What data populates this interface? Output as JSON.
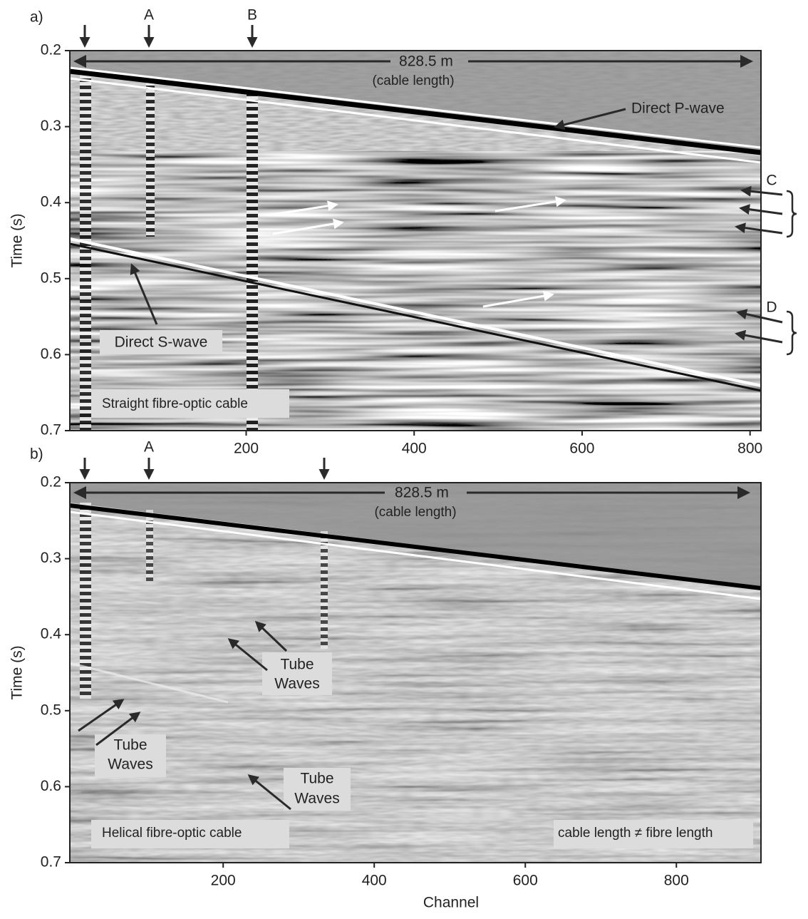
{
  "chart_data": [
    {
      "type": "seismic",
      "label": "a)",
      "xlim": [
        -10,
        813
      ],
      "xticks": [
        200,
        400,
        600,
        800
      ],
      "ylim": [
        0.2,
        0.7
      ],
      "yticks": [
        0.2,
        0.3,
        0.4,
        0.5,
        0.6,
        0.7
      ],
      "yreverse": true,
      "ylabel": "Time (s)",
      "annotations": {
        "top_markers": [
          "A",
          "B"
        ],
        "cable": "828.5 m",
        "cable_note": "(cable length)",
        "p_wave": "Direct P-wave",
        "s_wave": "Direct S-wave",
        "c": "C",
        "d": "D",
        "cable_type": "Straight fibre-optic cable"
      }
    },
    {
      "type": "seismic",
      "label": "b)",
      "xlim": [
        -3,
        912
      ],
      "xticks": [
        200,
        400,
        600,
        800
      ],
      "ylim": [
        0.2,
        0.7
      ],
      "yticks": [
        0.2,
        0.3,
        0.4,
        0.5,
        0.6,
        0.7
      ],
      "yreverse": true,
      "ylabel": "Time (s)",
      "xlabel": "Channel",
      "annotations": {
        "top_markers": [
          "A"
        ],
        "cable": "828.5 m",
        "cable_note": "(cable length)",
        "tube_waves": [
          [
            "Tube",
            "Waves"
          ],
          [
            "Tube",
            "Waves"
          ],
          [
            "Tube",
            "Waves"
          ]
        ],
        "cable_type": "Helical fibre-optic cable",
        "note": "cable length ≠ fibre length"
      }
    }
  ]
}
